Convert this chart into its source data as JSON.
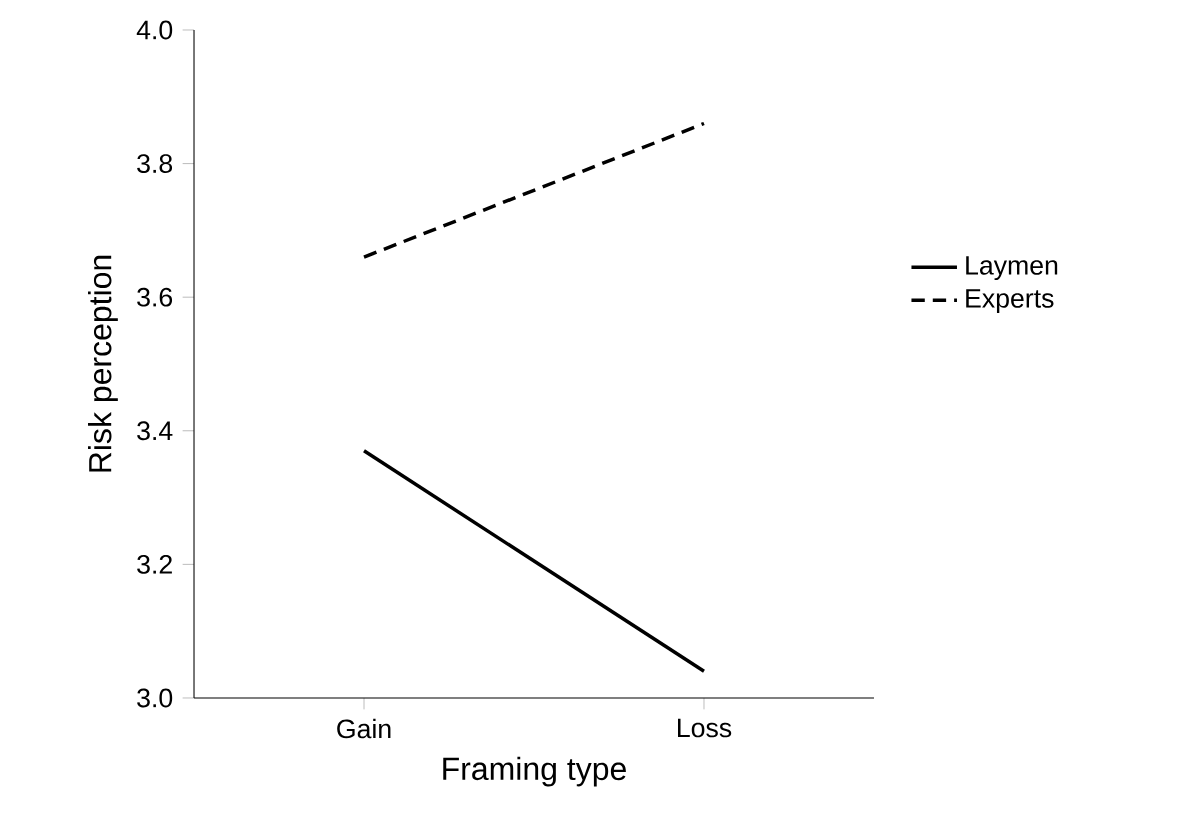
{
  "chart_data": {
    "type": "line",
    "xlabel": "Framing type",
    "ylabel": "Risk perception",
    "categories": [
      "Gain",
      "Loss"
    ],
    "series": [
      {
        "name": "Laymen",
        "color": "#000000",
        "line_style": "solid",
        "values": [
          3.37,
          3.04
        ]
      },
      {
        "name": "Experts",
        "color": "#000000",
        "line_style": "dashed",
        "values": [
          3.66,
          3.86
        ]
      }
    ],
    "ylim": [
      3.0,
      4.0
    ],
    "yticks": [
      {
        "value": 3.0,
        "label": "3.0"
      },
      {
        "value": 3.2,
        "label": "3.2"
      },
      {
        "value": 3.4,
        "label": "3.4"
      },
      {
        "value": 3.6,
        "label": "3.6"
      },
      {
        "value": 3.8,
        "label": "3.8"
      },
      {
        "value": 4.0,
        "label": "4.0"
      }
    ],
    "legend": "right",
    "marker": "none",
    "grid": false
  }
}
